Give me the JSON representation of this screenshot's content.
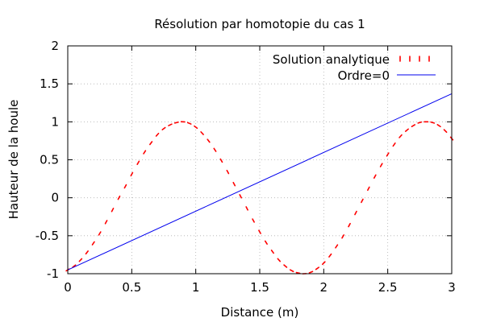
{
  "chart_data": {
    "type": "line",
    "title": "Résolution par homotopie du cas 1",
    "xlabel": "Distance (m)",
    "ylabel": "Hauteur de la houle",
    "xlim": [
      0,
      3
    ],
    "ylim": [
      -1,
      2
    ],
    "grid": true,
    "legend_position": "top-right",
    "xticks": [
      0,
      0.5,
      1,
      1.5,
      2,
      2.5,
      3
    ],
    "xtick_labels": [
      "0",
      "0.5",
      "1",
      "1.5",
      "2",
      "2.5",
      "3"
    ],
    "yticks": [
      -1,
      -0.5,
      0,
      0.5,
      1,
      1.5,
      2
    ],
    "ytick_labels": [
      "-1",
      "-0.5",
      "0",
      "0.5",
      "1",
      "1.5",
      "2"
    ],
    "series": [
      {
        "name": "Solution analytique",
        "style": "dotted",
        "color": "#ff0000",
        "x": [
          0,
          0.05,
          0.1,
          0.15,
          0.2,
          0.25,
          0.3,
          0.35,
          0.4,
          0.45,
          0.5,
          0.55,
          0.6,
          0.65,
          0.7,
          0.75,
          0.8,
          0.85,
          0.9,
          0.95,
          1,
          1.05,
          1.1,
          1.15,
          1.2,
          1.25,
          1.3,
          1.35,
          1.4,
          1.45,
          1.5,
          1.55,
          1.6,
          1.65,
          1.7,
          1.75,
          1.8,
          1.85,
          1.9,
          1.95,
          2,
          2.05,
          2.1,
          2.15,
          2.2,
          2.25,
          2.3,
          2.35,
          2.4,
          2.45,
          2.5,
          2.55,
          2.6,
          2.65,
          2.7,
          2.75,
          2.8,
          2.85,
          2.9,
          2.95,
          3
        ],
        "y": [
          -0.95,
          -0.9,
          -0.82,
          -0.72,
          -0.6,
          -0.47,
          -0.32,
          -0.16,
          0,
          0.15,
          0.31,
          0.46,
          0.6,
          0.72,
          0.83,
          0.91,
          0.96,
          0.99,
          1,
          0.98,
          0.93,
          0.85,
          0.75,
          0.63,
          0.49,
          0.34,
          0.18,
          0.02,
          -0.14,
          -0.3,
          -0.45,
          -0.59,
          -0.71,
          -0.82,
          -0.9,
          -0.96,
          -0.99,
          -1,
          -0.98,
          -0.93,
          -0.86,
          -0.76,
          -0.64,
          -0.51,
          -0.36,
          -0.2,
          -0.04,
          0.12,
          0.28,
          0.43,
          0.57,
          0.7,
          0.81,
          0.89,
          0.95,
          0.99,
          1,
          0.99,
          0.95,
          0.88,
          0.78
        ]
      },
      {
        "name": "Ordre=0",
        "style": "solid",
        "color": "#0000ee",
        "x": [
          0,
          3
        ],
        "y": [
          -0.95,
          1.37
        ]
      }
    ]
  }
}
